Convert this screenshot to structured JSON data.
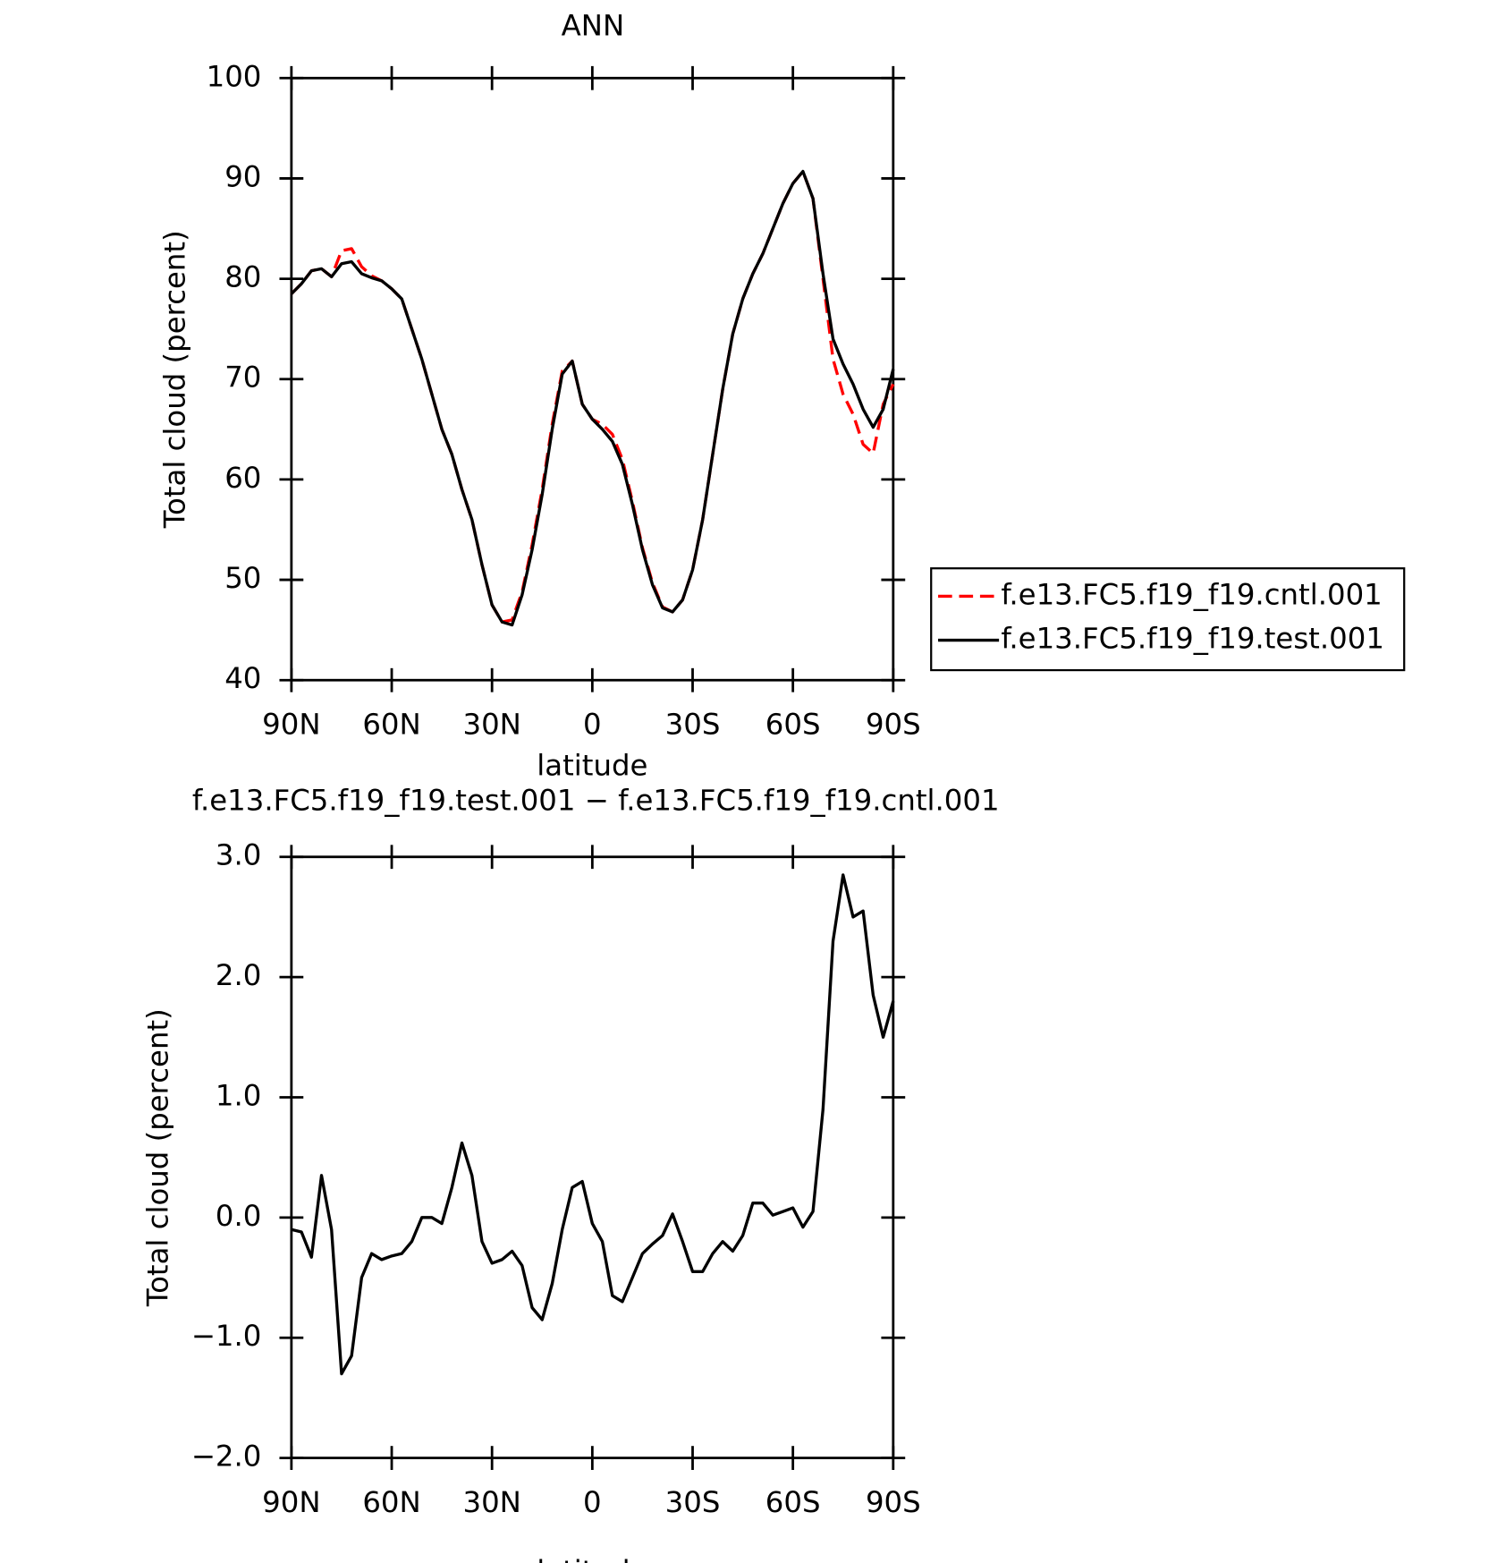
{
  "chart_data": [
    {
      "type": "line",
      "title": "ANN",
      "x_label": "latitude",
      "y_label": "Total cloud (percent)",
      "x": [
        90,
        87,
        84,
        81,
        78,
        75,
        72,
        69,
        66,
        63,
        60,
        57,
        54,
        51,
        48,
        45,
        42,
        39,
        36,
        33,
        30,
        27,
        24,
        21,
        18,
        15,
        12,
        9,
        6,
        3,
        0,
        -3,
        -6,
        -9,
        -12,
        -15,
        -18,
        -21,
        -24,
        -27,
        -30,
        -33,
        -36,
        -39,
        -42,
        -45,
        -48,
        -51,
        -54,
        -57,
        -60,
        -63,
        -66,
        -69,
        -72,
        -75,
        -78,
        -81,
        -84,
        -87,
        -90
      ],
      "xlim": [
        90,
        -90
      ],
      "xticks": [
        {
          "value": 90,
          "label": "90N"
        },
        {
          "value": 60,
          "label": "60N"
        },
        {
          "value": 30,
          "label": "30N"
        },
        0,
        {
          "value": -30,
          "label": "30S"
        },
        {
          "value": -60,
          "label": "60S"
        },
        {
          "value": -90,
          "label": "90S"
        }
      ],
      "ylim": [
        40,
        100
      ],
      "yticks": [
        40,
        50,
        60,
        70,
        80,
        90,
        100
      ],
      "legend": "outside-right",
      "series": [
        {
          "name": "f.e13.FC5.f19_f19.cntl.001",
          "color": "#ff0000",
          "dash": true,
          "values": [
            78.5,
            79.5,
            80.8,
            81.0,
            80.2,
            82.8,
            83.0,
            81.2,
            80.3,
            79.8,
            79.0,
            78.0,
            75,
            72,
            68.5,
            65,
            62.5,
            59,
            56,
            51.5,
            47.5,
            45.8,
            46.0,
            48.8,
            53.5,
            59,
            65.5,
            70.8,
            71.8,
            67.5,
            66,
            65.5,
            64.5,
            62,
            57.8,
            53.2,
            49.7,
            47.3,
            46.8,
            48,
            51,
            56,
            62.5,
            69,
            74.5,
            78,
            80.5,
            82.5,
            85,
            87.5,
            89.5,
            90.7,
            88,
            80,
            72,
            68.5,
            66.5,
            63.5,
            62.6,
            67.5,
            69.5
          ]
        },
        {
          "name": "f.e13.FC5.f19_f19.test.001",
          "color": "#000000",
          "dash": false,
          "values": [
            78.5,
            79.5,
            80.8,
            81.0,
            80.2,
            81.5,
            81.7,
            80.5,
            80.1,
            79.8,
            79.0,
            78.0,
            75,
            72,
            68.5,
            65,
            62.5,
            59,
            56,
            51.5,
            47.5,
            45.8,
            45.5,
            48.5,
            53,
            58.5,
            65,
            70.5,
            71.8,
            67.5,
            66,
            65,
            63.8,
            61.5,
            57.5,
            53,
            49.5,
            47.2,
            46.8,
            48,
            51,
            56,
            62.5,
            69,
            74.5,
            78,
            80.5,
            82.5,
            85,
            87.5,
            89.5,
            90.7,
            88,
            80.5,
            74,
            71.5,
            69.5,
            67,
            65.2,
            67,
            71
          ]
        }
      ]
    },
    {
      "type": "line",
      "title": "f.e13.FC5.f19_f19.test.001 − f.e13.FC5.f19_f19.cntl.001",
      "x_label": "latitude",
      "y_label": "Total cloud (percent)",
      "x": [
        90,
        87,
        84,
        81,
        78,
        75,
        72,
        69,
        66,
        63,
        60,
        57,
        54,
        51,
        48,
        45,
        42,
        39,
        36,
        33,
        30,
        27,
        24,
        21,
        18,
        15,
        12,
        9,
        6,
        3,
        0,
        -3,
        -6,
        -9,
        -12,
        -15,
        -18,
        -21,
        -24,
        -27,
        -30,
        -33,
        -36,
        -39,
        -42,
        -45,
        -48,
        -51,
        -54,
        -57,
        -60,
        -63,
        -66,
        -69,
        -72,
        -75,
        -78,
        -81,
        -84,
        -87,
        -90
      ],
      "xlim": [
        90,
        -90
      ],
      "xticks": [
        {
          "value": 90,
          "label": "90N"
        },
        {
          "value": 60,
          "label": "60N"
        },
        {
          "value": 30,
          "label": "30N"
        },
        0,
        {
          "value": -30,
          "label": "30S"
        },
        {
          "value": -60,
          "label": "60S"
        },
        {
          "value": -90,
          "label": "90S"
        }
      ],
      "ylim": [
        -2,
        3
      ],
      "yticks": [
        {
          "value": -2,
          "label": "−2.0"
        },
        {
          "value": -1,
          "label": "−1.0"
        },
        {
          "value": 0,
          "label": "0.0"
        },
        {
          "value": 1,
          "label": "1.0"
        },
        {
          "value": 2,
          "label": "2.0"
        },
        {
          "value": 3,
          "label": "3.0"
        }
      ],
      "series": [
        {
          "color": "#000000",
          "dash": false,
          "values": [
            -0.1,
            -0.12,
            -0.33,
            0.35,
            -0.1,
            -1.3,
            -1.15,
            -0.5,
            -0.3,
            -0.35,
            -0.32,
            -0.3,
            -0.2,
            0.0,
            0.0,
            -0.05,
            0.25,
            0.62,
            0.35,
            -0.2,
            -0.38,
            -0.35,
            -0.28,
            -0.4,
            -0.75,
            -0.85,
            -0.55,
            -0.1,
            0.25,
            0.3,
            -0.05,
            -0.2,
            -0.65,
            -0.7,
            -0.5,
            -0.3,
            -0.22,
            -0.15,
            0.03,
            -0.2,
            -0.45,
            -0.45,
            -0.3,
            -0.2,
            -0.28,
            -0.15,
            0.12,
            0.12,
            0.02,
            0.05,
            0.08,
            -0.08,
            0.05,
            0.9,
            2.3,
            2.85,
            2.5,
            2.55,
            1.85,
            1.5,
            1.8
          ]
        }
      ]
    }
  ]
}
